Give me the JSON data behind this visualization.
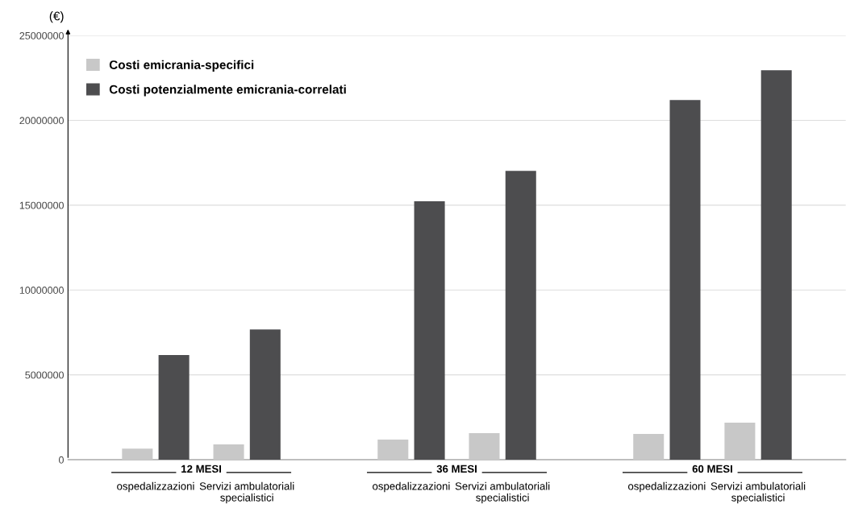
{
  "chart_data": {
    "type": "bar",
    "ylabel": "(€)",
    "categories": [
      "ospedalizzazioni",
      "Servizi ambulatoriali\nspecialistici",
      "ospedalizzazioni",
      "Servizi ambulatoriali\nspecialistici",
      "ospedalizzazioni",
      "Servizi ambulatoriali\nspecialistici"
    ],
    "series": [
      {
        "name": "Costi emicrania-specifici",
        "color": "#c8c8c8",
        "values": [
          660000,
          900000,
          1190000,
          1570000,
          1520000,
          2180000
        ]
      },
      {
        "name": "Costi potenzialmente emicrania-correlati",
        "color": "#4d4d4f",
        "values": [
          6170000,
          7680000,
          15230000,
          17030000,
          21200000,
          22960000
        ]
      }
    ],
    "annotations": [
      "12 MESI",
      "36 MESI",
      "60 MESI"
    ],
    "ylim": [
      0,
      25000000
    ],
    "yticks": [
      0,
      5000000,
      10000000,
      15000000,
      20000000,
      25000000
    ],
    "grid": "y",
    "legend": "top left"
  }
}
